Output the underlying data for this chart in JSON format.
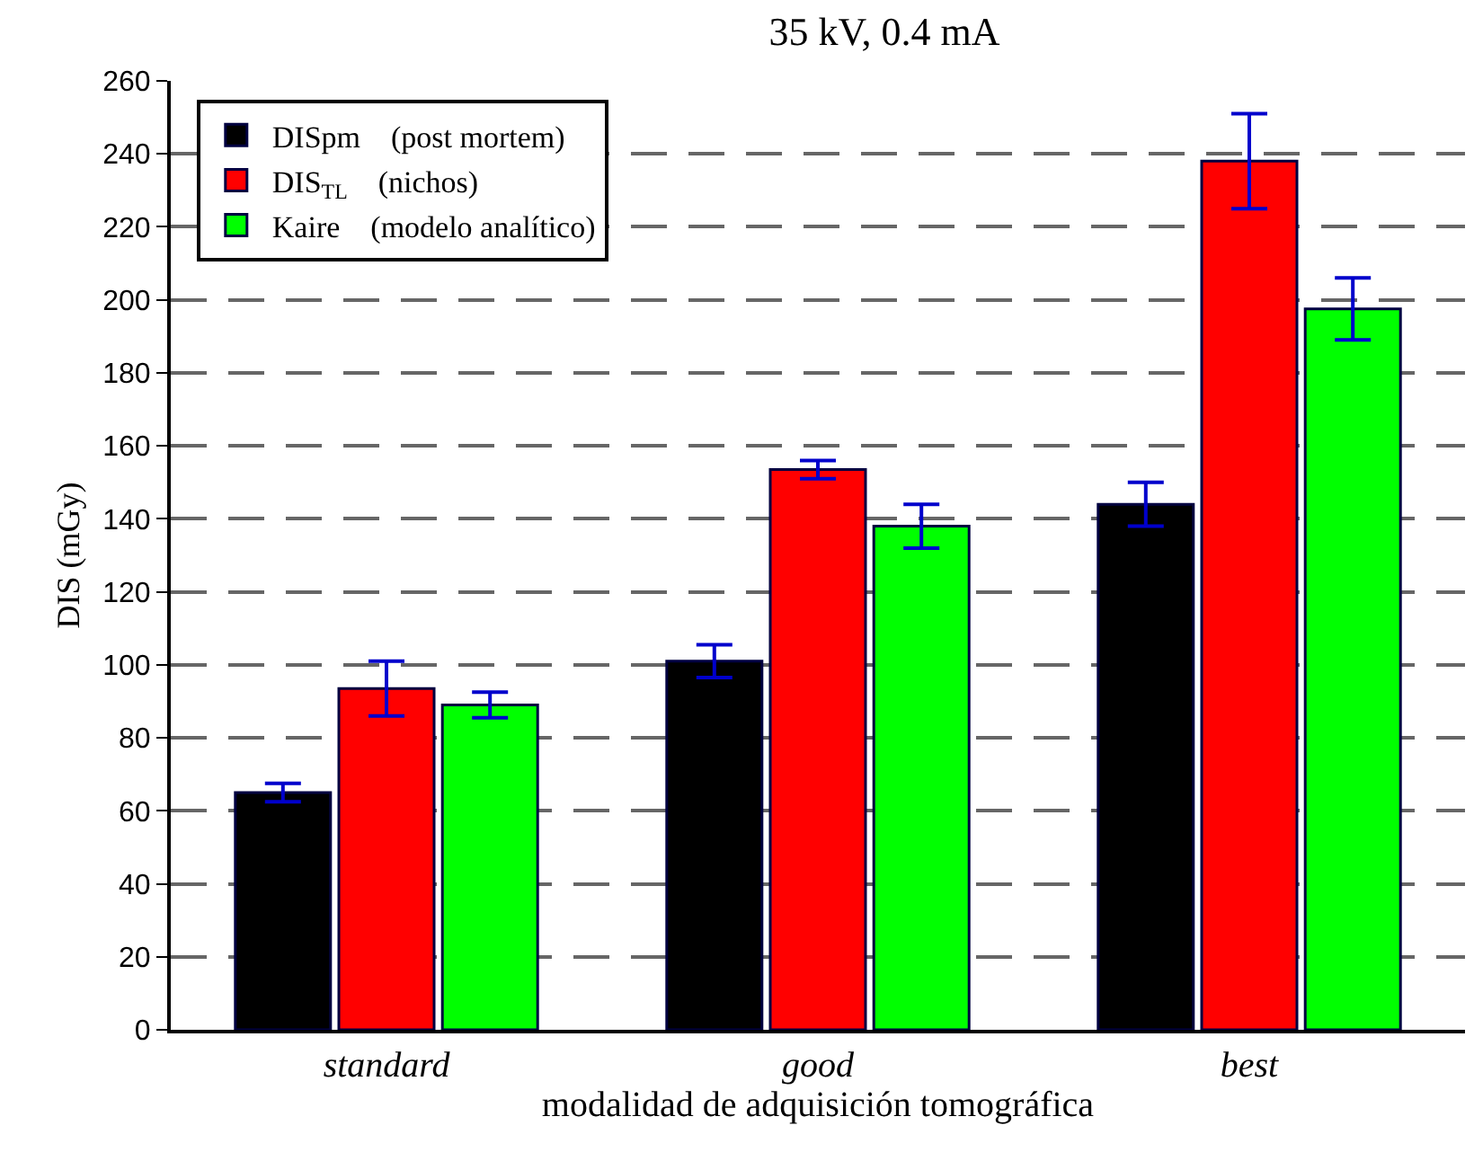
{
  "chart_data": {
    "type": "bar",
    "title": "35 kV, 0.4 mA",
    "xlabel": "modalidad de adquisición tomográfica",
    "ylabel": "DIS (mGy)",
    "categories": [
      "standard",
      "good",
      "best"
    ],
    "series": [
      {
        "name": "DISpm    (post mortem)",
        "color": "#000000",
        "values": [
          65,
          101,
          144
        ],
        "errors": [
          2.5,
          4.5,
          6
        ]
      },
      {
        "name": "DIS$_{TL}$    (nichos)",
        "color": "#ff0000",
        "values": [
          93.5,
          153.5,
          238
        ],
        "errors": [
          7.5,
          2.5,
          13
        ]
      },
      {
        "name": "Kaire    (modelo analítico)",
        "color": "#00ff00",
        "values": [
          89,
          138,
          197.5
        ],
        "errors": [
          3.5,
          6,
          8.5
        ]
      }
    ],
    "ylim": [
      0,
      260
    ],
    "yticks": [
      0,
      20,
      40,
      60,
      80,
      100,
      120,
      140,
      160,
      180,
      200,
      220,
      240,
      260
    ],
    "grid": "y",
    "legend": "top left"
  }
}
